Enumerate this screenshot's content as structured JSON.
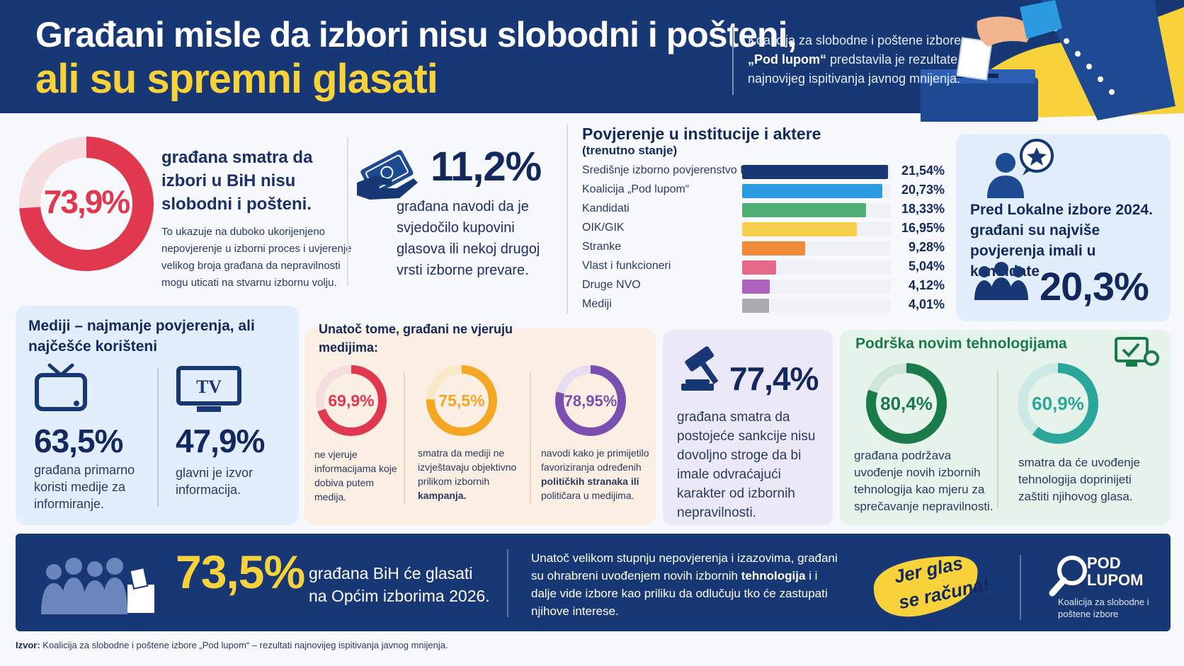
{
  "header": {
    "title_line1": "Građani misle da izbori nisu slobodni i pošteni,",
    "title_line2": "ali su spremni glasati",
    "desc_line1": "Koalicija za slobodne i poštene izbore",
    "desc_bold": "„Pod lupom“",
    "desc_rest": " predstavila je rezultate najnovijeg ispitivanja javnog mnijenja.",
    "colors": {
      "navy": "#173874",
      "yellow": "#f7d23a"
    }
  },
  "stat_free_elections": {
    "value": "73,9%",
    "percent": 73.9,
    "headline": "građana smatra da izbori u BiH nisu slobodni i pošteni.",
    "body": "To ukazuje na duboko ukorijenjeno nepovjerenje u izborni proces i uvjerenje velikog broja građana da nepravilnosti mogu uticati na stvarnu izbornu volju.",
    "color": "#e0384f"
  },
  "stat_vote_buying": {
    "value": "11,2%",
    "body": "građana navodi da je svjedočilo kupovini glasova ili nekoj drugoj vrsti izborne prevare.",
    "icon": "money-hand-icon"
  },
  "trust": {
    "title": "Povjerenje u institucije i aktere",
    "subtitle": "(trenutno stanje)",
    "rows": [
      {
        "label": "Središnje izborno povjerenstvo BiH",
        "value": 21.54,
        "display": "21,54%",
        "color": "#173874"
      },
      {
        "label": "Koalicija „Pod lupom“",
        "value": 20.73,
        "display": "20,73%",
        "color": "#2d9be0"
      },
      {
        "label": "Kandidati",
        "value": 18.33,
        "display": "18,33%",
        "color": "#4fae72"
      },
      {
        "label": "OIK/GIK",
        "value": 16.95,
        "display": "16,95%",
        "color": "#f7cf4a"
      },
      {
        "label": "Stranke",
        "value": 9.28,
        "display": "9,28%",
        "color": "#ef8a3a"
      },
      {
        "label": "Vlast i funkcioneri",
        "value": 5.04,
        "display": "5,04%",
        "color": "#e56a8a"
      },
      {
        "label": "Druge NVO",
        "value": 4.12,
        "display": "4,12%",
        "color": "#b062c0"
      },
      {
        "label": "Mediji",
        "value": 4.01,
        "display": "4,01%",
        "color": "#a8aab0"
      }
    ]
  },
  "candidates": {
    "text": "Pred Lokalne izbore 2024. građani su najviše povjerenja imali u kandidate",
    "value": "20,3%"
  },
  "media": {
    "title": "Mediji – najmanje povjerenja, ali najčešće korišteni",
    "stat1_value": "63,5%",
    "stat1_text": "građana primarno koristi medije za informiranje.",
    "stat2_value": "47,9%",
    "stat2_text": "glavni je izvor informacija.",
    "tv_label": "TV"
  },
  "distrust": {
    "title": "Unatoč tome, građani ne vjeruju medijima:",
    "items": [
      {
        "value": "69,9%",
        "percent": 69.9,
        "color": "#e0384f",
        "text": "ne vjeruje informacijama koje dobiva putem medija."
      },
      {
        "value": "75,5%",
        "percent": 75.5,
        "color": "#f5a623",
        "text_a": "smatra da mediji ne izvještavaju objektivno prilikom izbornih ",
        "text_b": "kampanja."
      },
      {
        "value": "78,95%",
        "percent": 78.95,
        "color": "#7b4fb0",
        "text_a": "navodi kako je primijetilo favoriziranja određenih ",
        "text_b": "političkih stranaka ili",
        "text_c": " političara u medijima."
      }
    ]
  },
  "sanctions": {
    "value": "77,4%",
    "text": "građana smatra da postojeće sankcije nisu dovoljno stroge da bi imale odvraćajući karakter od izbornih nepravilnosti."
  },
  "technology": {
    "title": "Podrška novim tehnologijama",
    "items": [
      {
        "value": "80,4%",
        "percent": 80.4,
        "color": "#1a7a4a",
        "text": "građana podržava uvođenje novih izbornih tehnologija kao mjeru za sprečavanje nepravilnosti."
      },
      {
        "value": "60,9%",
        "percent": 60.9,
        "color": "#2aa69a",
        "text": "smatra da će uvođenje tehnologija doprinijeti zaštiti njihovog glasa."
      }
    ]
  },
  "vote": {
    "value": "73,5%",
    "text": "građana BiH će glasati na Općim izborima 2026.",
    "note_a": "Unatoč velikom stupnju nepovjerenja i izazovima, građani su ohrabreni uvođenjem novih izbornih ",
    "note_bold": "tehnologija",
    "note_b": " i i dalje vide izbore kao priliku da odlučuju tko će zastupati njihove interese.",
    "slogan1": "Jer glas",
    "slogan2": "se računa!",
    "logo_line1": "POD",
    "logo_line2": "LUPOM",
    "logo_sub": "Koalicija za slobodne i poštene izbore"
  },
  "source": {
    "label": "Izvor:",
    "text": " Koalicija za slobodne i poštene izbore „Pod lupom“ – rezultati najnovijeg ispitivanja javnog mnijenja."
  }
}
